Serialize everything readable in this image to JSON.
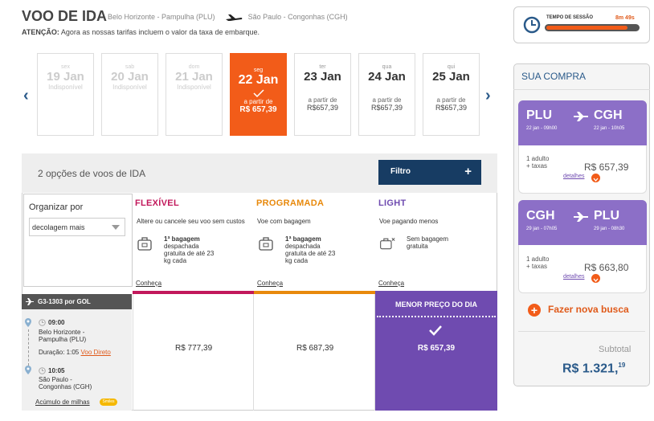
{
  "header": {
    "title": "VOO DE IDA",
    "origin": "Belo Horizonte - Pampulha (PLU)",
    "destination": "São Paulo - Congonhas (CGH)",
    "notice_label": "ATENÇÃO:",
    "notice_text": "Agora as nossas tarifas incluem o valor da taxa de embarque."
  },
  "dates": [
    {
      "weekday": "sex",
      "date": "19 Jan",
      "status": "Indisponível"
    },
    {
      "weekday": "sab",
      "date": "20 Jan",
      "status": "Indisponível"
    },
    {
      "weekday": "dom",
      "date": "21 Jan",
      "status": "Indisponível"
    },
    {
      "weekday": "seg",
      "date": "22 Jan",
      "from": "a partir de",
      "price": "R$ 657,39"
    },
    {
      "weekday": "ter",
      "date": "23 Jan",
      "from": "a partir de",
      "price": "R$657,39"
    },
    {
      "weekday": "qua",
      "date": "24 Jan",
      "from": "a partir de",
      "price": "R$657,39"
    },
    {
      "weekday": "qui",
      "date": "25 Jan",
      "from": "a partir de",
      "price": "R$657,39"
    }
  ],
  "results": {
    "count_text": "2 opções de voos de IDA",
    "filter_label": "Filtro",
    "filter_plus": "+"
  },
  "organize": {
    "label": "Organizar por",
    "selected": "decolagem mais"
  },
  "fares": [
    {
      "name": "FLEXÍVEL",
      "color": "#c2185b",
      "desc": "Altere ou cancele seu voo sem custos",
      "bag_bold": "1ª bagagem",
      "bag_text": "despachada gratuita de até 23 kg cada",
      "link": "Conheça",
      "price": "R$ 777,39"
    },
    {
      "name": "PROGRAMADA",
      "color": "#e8890c",
      "desc": "Voe com bagagem",
      "bag_bold": "1ª bagagem",
      "bag_text": "despachada gratuita de até 23 kg cada",
      "link": "Conheça",
      "price": "R$ 687,39"
    },
    {
      "name": "LIGHT",
      "color": "#6f4bb0",
      "desc": "Voe pagando menos",
      "bag_text": "Sem bagagem gratuita",
      "link": "Conheça",
      "best_label": "MENOR PREÇO DO DIA",
      "price": "R$ 657,39"
    }
  ],
  "flight": {
    "number": "G3-1303 por GOL",
    "dep_time": "09:00",
    "dep_place": "Belo Horizonte - Pampulha (PLU)",
    "duration_label": "Duração: 1:05",
    "direct": "Voo Direto",
    "arr_time": "10:05",
    "arr_place": "São Paulo - Congonhas (CGH)",
    "miles": "Acúmulo de milhas",
    "miles_badge": "Smiles"
  },
  "session": {
    "label": "TEMPO DE SESSÃO",
    "time": "8m 49s",
    "progress": 0.87
  },
  "cart": {
    "title": "SUA COMPRA",
    "legs": [
      {
        "from": "PLU",
        "to": "CGH",
        "from_sub": "22 jan - 09h00",
        "to_sub": "22 jan - 10h05",
        "pax": "1 adulto",
        "tax": "+ taxas",
        "price": "R$ 657,39",
        "details": "detalhes"
      },
      {
        "from": "CGH",
        "to": "PLU",
        "from_sub": "29 jan - 07h05",
        "to_sub": "29 jan - 08h30",
        "pax": "1 adulto",
        "tax": "+ taxas",
        "price": "R$ 663,80",
        "details": "detalhes"
      }
    ],
    "new_search": "Fazer nova busca",
    "subtotal_label": "Subtotal",
    "subtotal_main": "R$ 1.321,",
    "subtotal_cents": "19"
  },
  "colors": {
    "accent": "#f25c19",
    "navy": "#173c63",
    "purple": "#6f4bb0",
    "lavender": "#8c6fc7"
  }
}
